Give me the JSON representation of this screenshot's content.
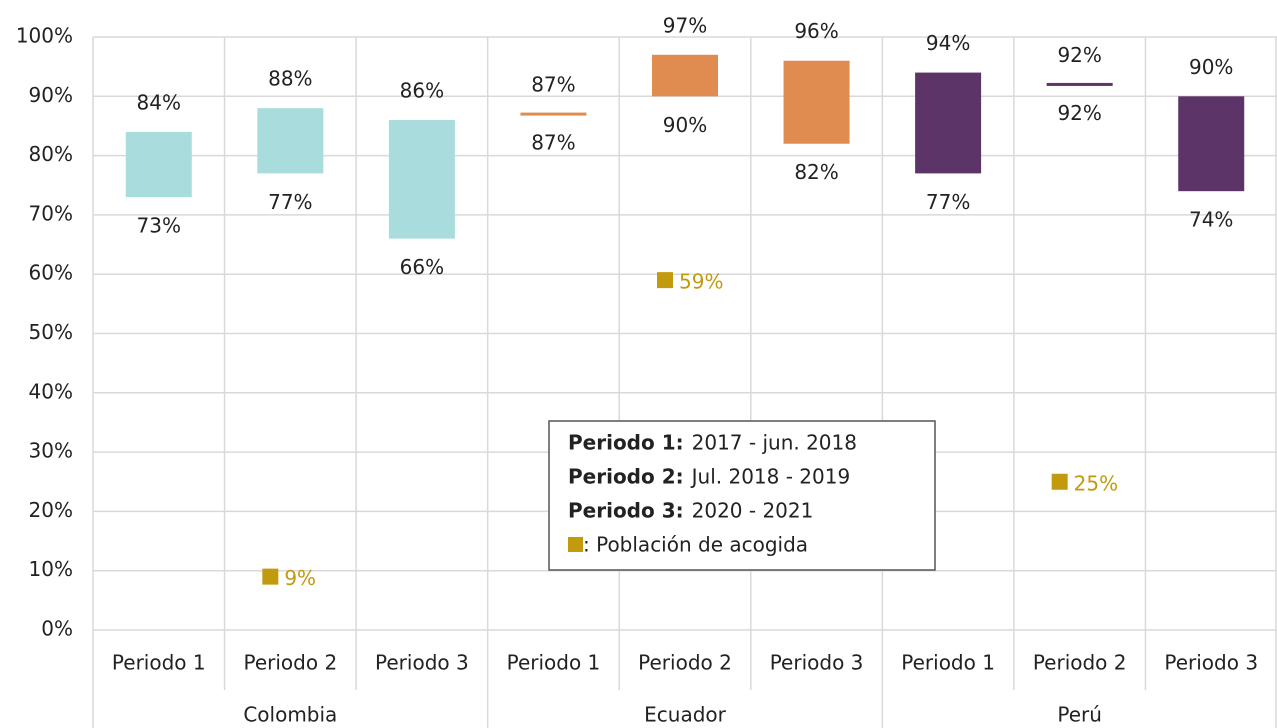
{
  "chart_data": {
    "type": "range_bar",
    "ylim": [
      0,
      100
    ],
    "yticks": [
      {
        "value": 0,
        "label": "0%"
      },
      {
        "value": 10,
        "label": "10%"
      },
      {
        "value": 20,
        "label": "20%"
      },
      {
        "value": 30,
        "label": "30%"
      },
      {
        "value": 40,
        "label": "40%"
      },
      {
        "value": 50,
        "label": "50%"
      },
      {
        "value": 60,
        "label": "60%"
      },
      {
        "value": 70,
        "label": "70%"
      },
      {
        "value": 80,
        "label": "80%"
      },
      {
        "value": 90,
        "label": "90%"
      },
      {
        "value": 100,
        "label": "100%"
      }
    ],
    "grid": true,
    "marker_color": "#c29a0d",
    "groups": [
      {
        "name": "Colombia",
        "color": "#a9dcdc",
        "categories": [
          "Periodo 1",
          "Periodo 2",
          "Periodo 3"
        ],
        "low": [
          73,
          77,
          66
        ],
        "low_labels": [
          "73%",
          "77%",
          "66%"
        ],
        "high": [
          84,
          88,
          86
        ],
        "high_labels": [
          "84%",
          "88%",
          "86%"
        ],
        "host": [
          null,
          9,
          null
        ],
        "host_labels": [
          null,
          "9%",
          null
        ]
      },
      {
        "name": "Ecuador",
        "color": "#e08b50",
        "categories": [
          "Periodo 1",
          "Periodo 2",
          "Periodo 3"
        ],
        "low": [
          87,
          90,
          82
        ],
        "low_labels": [
          "87%",
          "90%",
          "82%"
        ],
        "high": [
          87,
          97,
          96
        ],
        "high_labels": [
          "87%",
          "97%",
          "96%"
        ],
        "host": [
          null,
          59,
          null
        ],
        "host_labels": [
          null,
          "59%",
          null
        ]
      },
      {
        "name": "Perú",
        "color": "#5c3467",
        "categories": [
          "Periodo 1",
          "Periodo 2",
          "Periodo 3"
        ],
        "low": [
          77,
          92,
          74
        ],
        "low_labels": [
          "77%",
          "92%",
          "74%"
        ],
        "high": [
          94,
          92,
          90
        ],
        "high_labels": [
          "94%",
          "92%",
          "90%"
        ],
        "host": [
          null,
          25,
          null
        ],
        "host_labels": [
          null,
          "25%",
          null
        ]
      }
    ],
    "legend": {
      "items": [
        {
          "term": "Periodo 1:",
          "text": "2017 - jun. 2018"
        },
        {
          "term": "Periodo 2:",
          "text": "Jul. 2018 - 2019"
        },
        {
          "term": "Periodo 3:",
          "text": "2020 - 2021"
        }
      ],
      "marker_text": ": Población de acogida"
    }
  }
}
